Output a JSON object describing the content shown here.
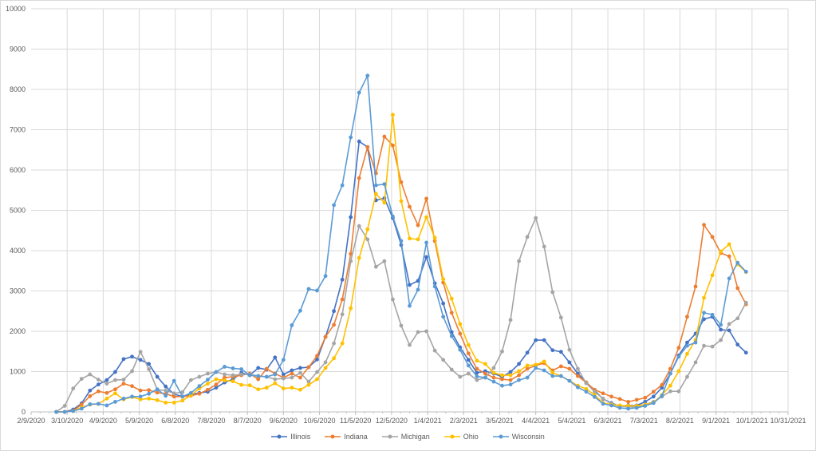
{
  "chart_data": {
    "type": "line",
    "title": "",
    "xlabel": "",
    "ylabel": "",
    "ylim": [
      0,
      10000
    ],
    "y_ticks": [
      "0",
      "1000",
      "2000",
      "3000",
      "4000",
      "5000",
      "6000",
      "7000",
      "8000",
      "9000",
      "10000"
    ],
    "x_ticks": [
      "2/9/2020",
      "3/10/2020",
      "4/9/2020",
      "5/9/2020",
      "6/8/2020",
      "7/8/2020",
      "8/7/2020",
      "9/6/2020",
      "10/6/2020",
      "11/5/2020",
      "12/5/2020",
      "1/4/2021",
      "2/3/2021",
      "3/5/2021",
      "4/4/2021",
      "5/4/2021",
      "6/3/2021",
      "7/3/2021",
      "8/2/2021",
      "9/1/2021",
      "10/1/2021",
      "10/31/2021"
    ],
    "x_range": [
      "2/9/2020",
      "10/31/2021"
    ],
    "x_start": "3/1/2020",
    "x_interval_days": 7,
    "grid": true,
    "legend_position": "bottom",
    "series": [
      {
        "name": "Illinois",
        "color": "#4472C4",
        "values": [
          0,
          0,
          60,
          210,
          530,
          680,
          790,
          990,
          1310,
          1370,
          1290,
          1190,
          870,
          630,
          440,
          380,
          430,
          470,
          500,
          600,
          730,
          810,
          970,
          910,
          1090,
          1050,
          1350,
          930,
          1030,
          1090,
          1110,
          1300,
          1860,
          2500,
          3280,
          4830,
          6710,
          6570,
          5250,
          5300,
          4810,
          4140,
          3150,
          3250,
          3840,
          3190,
          2690,
          1980,
          1600,
          1290,
          970,
          1010,
          950,
          870,
          990,
          1190,
          1470,
          1780,
          1780,
          1530,
          1490,
          1230,
          950,
          730,
          530,
          320,
          220,
          140,
          160,
          160,
          250,
          380,
          600,
          950,
          1400,
          1720,
          1940,
          2300,
          2360,
          2040,
          2020,
          1670,
          1470
        ]
      },
      {
        "name": "Indiana",
        "color": "#ED7D31",
        "values": [
          0,
          0,
          30,
          180,
          390,
          510,
          470,
          560,
          700,
          640,
          530,
          540,
          480,
          450,
          380,
          380,
          400,
          450,
          550,
          680,
          850,
          870,
          910,
          950,
          810,
          1070,
          950,
          850,
          950,
          850,
          1110,
          1390,
          1860,
          2160,
          2790,
          3920,
          5800,
          6570,
          5920,
          6830,
          6610,
          5700,
          5090,
          4630,
          5290,
          4240,
          3210,
          2460,
          1940,
          1450,
          1070,
          950,
          850,
          810,
          790,
          910,
          1070,
          1150,
          1210,
          1030,
          1130,
          1070,
          890,
          730,
          550,
          460,
          380,
          320,
          250,
          300,
          350,
          500,
          670,
          1070,
          1590,
          2360,
          3110,
          4640,
          4340,
          3940,
          3860,
          3070,
          2670
        ]
      },
      {
        "name": "Michigan",
        "color": "#A5A5A5",
        "values": [
          0,
          150,
          580,
          820,
          930,
          800,
          700,
          790,
          800,
          1010,
          1490,
          1060,
          550,
          530,
          460,
          490,
          790,
          870,
          950,
          990,
          930,
          910,
          930,
          930,
          890,
          870,
          810,
          830,
          850,
          970,
          750,
          990,
          1230,
          1700,
          2420,
          3740,
          4610,
          4280,
          3600,
          3740,
          2790,
          2140,
          1660,
          1980,
          2000,
          1520,
          1290,
          1050,
          870,
          950,
          790,
          850,
          1090,
          1500,
          2280,
          3740,
          4340,
          4810,
          4100,
          2970,
          2340,
          1540,
          1070,
          710,
          500,
          330,
          200,
          150,
          120,
          130,
          180,
          250,
          380,
          510,
          510,
          870,
          1230,
          1640,
          1620,
          1780,
          2180,
          2320,
          2710
        ]
      },
      {
        "name": "Ohio",
        "color": "#FFC000",
        "values": [
          0,
          0,
          20,
          110,
          180,
          200,
          330,
          460,
          310,
          370,
          310,
          330,
          290,
          230,
          230,
          280,
          410,
          580,
          700,
          810,
          780,
          760,
          670,
          660,
          560,
          600,
          710,
          580,
          600,
          550,
          670,
          810,
          1090,
          1330,
          1700,
          2570,
          3820,
          4530,
          5410,
          5190,
          7370,
          5230,
          4300,
          4280,
          4830,
          4320,
          3290,
          2810,
          2180,
          1660,
          1270,
          1190,
          970,
          910,
          910,
          1010,
          1150,
          1170,
          1250,
          970,
          890,
          770,
          650,
          570,
          420,
          220,
          180,
          160,
          150,
          150,
          180,
          230,
          420,
          650,
          1010,
          1440,
          1780,
          2830,
          3390,
          3980,
          4160,
          3660,
          3470
        ]
      },
      {
        "name": "Wisconsin",
        "color": "#5B9BD5",
        "values": [
          0,
          0,
          20,
          80,
          190,
          200,
          160,
          250,
          330,
          380,
          380,
          450,
          560,
          400,
          770,
          380,
          470,
          640,
          800,
          990,
          1120,
          1080,
          1060,
          910,
          890,
          870,
          930,
          1290,
          2150,
          2510,
          3050,
          3010,
          3370,
          5130,
          5620,
          6810,
          7920,
          8340,
          5620,
          5650,
          4850,
          4240,
          2630,
          3030,
          4200,
          3110,
          2360,
          1880,
          1540,
          1150,
          880,
          850,
          750,
          650,
          680,
          790,
          850,
          1090,
          1030,
          890,
          890,
          770,
          610,
          500,
          370,
          200,
          160,
          100,
          80,
          100,
          150,
          220,
          400,
          950,
          1370,
          1640,
          1720,
          2460,
          2410,
          2160,
          3310,
          3700,
          3480
        ]
      }
    ]
  }
}
